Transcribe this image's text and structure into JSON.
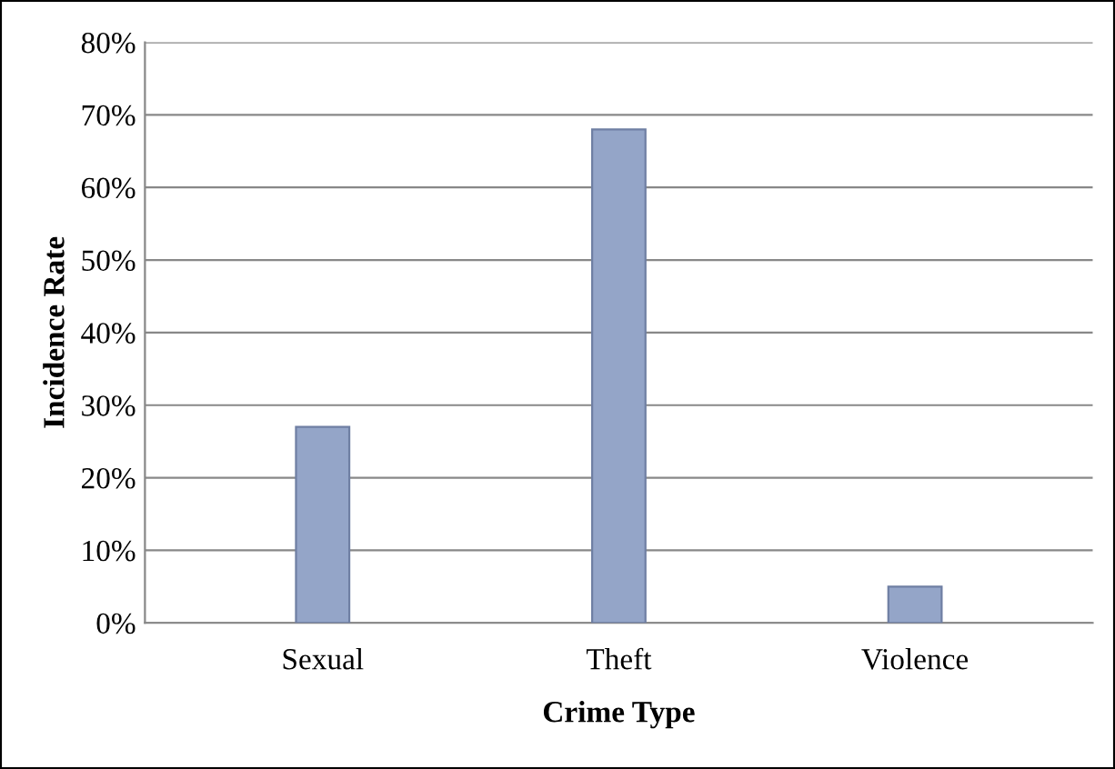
{
  "chart_data": {
    "type": "bar",
    "xlabel": "Crime Type",
    "ylabel": "Incidence Rate",
    "categories": [
      "Sexual",
      "Theft",
      "Violence"
    ],
    "values": [
      27,
      68,
      5
    ],
    "color": "#94a5c8",
    "ylim": [
      0,
      80
    ],
    "yticks": [
      {
        "value": 0,
        "label": "0%"
      },
      {
        "value": 10,
        "label": "10%"
      },
      {
        "value": 20,
        "label": "20%"
      },
      {
        "value": 30,
        "label": "30%"
      },
      {
        "value": 40,
        "label": "40%"
      },
      {
        "value": 50,
        "label": "50%"
      },
      {
        "value": 60,
        "label": "60%"
      },
      {
        "value": 70,
        "label": "70%"
      },
      {
        "value": 80,
        "label": "80%"
      }
    ],
    "grid": "y"
  }
}
